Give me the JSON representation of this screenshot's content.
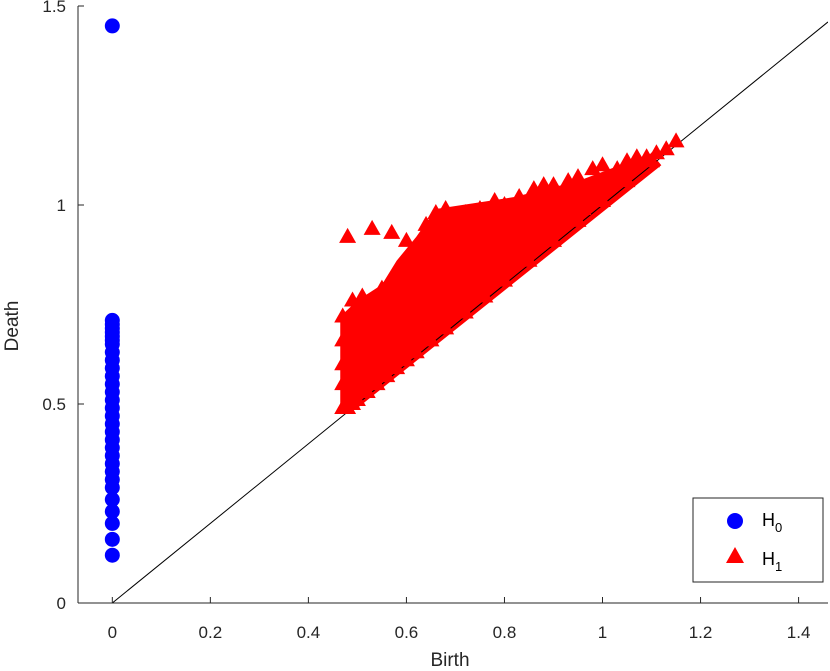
{
  "chart_data": {
    "type": "scatter",
    "title": "",
    "xlabel": "Birth",
    "ylabel": "Death",
    "xlim": [
      -0.07,
      1.46
    ],
    "ylim": [
      0,
      1.5
    ],
    "x_ticks": [
      "0",
      "0.2",
      "0.4",
      "0.6",
      "0.8",
      "1",
      "1.2",
      "1.4"
    ],
    "y_ticks": [
      "0",
      "0.5",
      "1",
      "1.5"
    ],
    "grid": false,
    "legend_position": "bottom-right",
    "diagonal_line": {
      "from": [
        0,
        0
      ],
      "to": [
        1.46,
        1.46
      ],
      "color": "#000000"
    },
    "series": [
      {
        "name": "H",
        "subscript": "0",
        "marker": "circle",
        "color": "#0000ff",
        "x": [
          0,
          0,
          0,
          0,
          0,
          0,
          0,
          0,
          0,
          0,
          0,
          0,
          0,
          0,
          0,
          0,
          0,
          0,
          0,
          0,
          0,
          0,
          0,
          0,
          0,
          0,
          0,
          0,
          0,
          0,
          0
        ],
        "y": [
          1.45,
          0.71,
          0.7,
          0.69,
          0.68,
          0.67,
          0.66,
          0.65,
          0.63,
          0.61,
          0.59,
          0.57,
          0.55,
          0.53,
          0.51,
          0.49,
          0.47,
          0.45,
          0.43,
          0.41,
          0.39,
          0.37,
          0.35,
          0.33,
          0.31,
          0.29,
          0.26,
          0.23,
          0.2,
          0.16,
          0.12
        ]
      },
      {
        "name": "H",
        "subscript": "1",
        "marker": "triangle",
        "color": "#ff0000",
        "x": [
          0.48,
          0.53,
          0.57,
          0.6,
          0.47,
          0.49,
          0.51,
          0.55,
          0.58,
          0.62,
          0.64,
          0.66,
          0.68,
          0.7,
          0.72,
          0.75,
          0.78,
          0.8,
          0.83,
          0.86,
          0.88,
          0.9,
          0.93,
          0.95,
          0.98,
          1.0,
          1.03,
          1.05,
          1.07,
          1.09,
          1.11,
          1.13,
          1.15,
          0.47,
          0.47,
          0.47,
          0.47,
          0.48,
          0.49,
          0.5,
          0.52,
          0.54,
          0.56,
          0.58,
          0.6,
          0.62,
          0.65,
          0.68,
          0.72,
          0.76,
          0.8,
          0.85,
          0.9,
          0.95,
          1.0,
          1.05,
          1.1,
          0.5,
          0.53,
          0.56,
          0.59,
          0.62,
          0.65,
          0.68,
          0.71,
          0.74,
          0.77,
          0.8,
          0.84,
          0.88,
          0.92,
          0.96,
          1.0,
          1.04,
          0.52,
          0.55,
          0.58,
          0.61,
          0.64,
          0.67,
          0.7,
          0.73,
          0.76,
          0.79,
          0.82,
          0.85,
          0.88,
          0.91,
          0.94,
          0.97,
          1.01,
          0.49,
          0.51,
          0.53,
          0.55,
          0.57,
          0.6,
          0.63,
          0.66,
          0.69,
          0.72,
          0.75,
          0.78,
          0.81,
          0.84,
          0.87,
          0.9,
          0.93,
          0.96,
          0.6,
          0.63,
          0.66,
          0.69,
          0.72,
          0.75,
          0.78,
          0.81,
          0.84,
          0.87,
          0.9
        ],
        "y": [
          0.92,
          0.94,
          0.93,
          0.91,
          0.72,
          0.76,
          0.77,
          0.79,
          0.83,
          0.87,
          0.95,
          0.98,
          0.99,
          0.97,
          0.98,
          0.99,
          1.01,
          1.0,
          1.02,
          1.04,
          1.05,
          1.05,
          1.06,
          1.07,
          1.09,
          1.1,
          1.09,
          1.11,
          1.12,
          1.12,
          1.13,
          1.14,
          1.16,
          0.49,
          0.55,
          0.6,
          0.66,
          0.49,
          0.5,
          0.51,
          0.53,
          0.55,
          0.57,
          0.59,
          0.61,
          0.63,
          0.66,
          0.69,
          0.73,
          0.77,
          0.81,
          0.86,
          0.91,
          0.96,
          1.01,
          1.06,
          1.11,
          0.58,
          0.62,
          0.66,
          0.7,
          0.73,
          0.76,
          0.79,
          0.82,
          0.85,
          0.88,
          0.91,
          0.94,
          0.96,
          0.99,
          1.02,
          1.05,
          1.07,
          0.68,
          0.72,
          0.75,
          0.78,
          0.81,
          0.84,
          0.86,
          0.88,
          0.9,
          0.92,
          0.94,
          0.96,
          0.98,
          1.0,
          1.01,
          1.03,
          1.05,
          0.64,
          0.67,
          0.7,
          0.72,
          0.74,
          0.69,
          0.71,
          0.74,
          0.77,
          0.8,
          0.83,
          0.86,
          0.88,
          0.9,
          0.92,
          0.94,
          0.97,
          0.99,
          0.86,
          0.9,
          0.88,
          0.92,
          0.95,
          0.93,
          0.96,
          0.98,
          0.97,
          1.0,
          1.02
        ]
      }
    ]
  }
}
